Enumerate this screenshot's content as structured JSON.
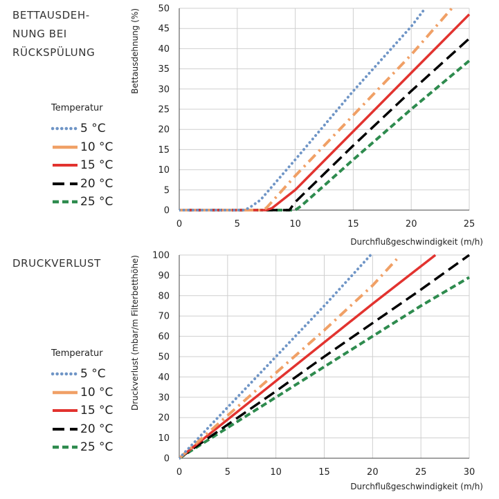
{
  "sections": [
    {
      "title": "BETTAUSDEH-\nNUNG BEI\nRÜCKSPÜLUNG",
      "legend_title": "Temperatur"
    },
    {
      "title": "DRUCKVERLUST",
      "legend_title": "Temperatur"
    }
  ],
  "series_styles": [
    {
      "name": "5 °C",
      "color": "#6f95c6",
      "dash": "dotted"
    },
    {
      "name": "10 °C",
      "color": "#f0a066",
      "dash": "dashdot"
    },
    {
      "name": "15 °C",
      "color": "#e2332f",
      "dash": "solid"
    },
    {
      "name": "20 °C",
      "color": "#000000",
      "dash": "dashed"
    },
    {
      "name": "25 °C",
      "color": "#2e8b4e",
      "dash": "shortdash"
    }
  ],
  "chart_data": [
    {
      "type": "line",
      "title": "BETTAUSDEHNUNG BEI RÜCKSPÜLUNG",
      "xlabel": "Durchflußgeschwindigkeit (m/h)",
      "ylabel": "Bettausdehnung (%)",
      "xlim": [
        0,
        25
      ],
      "ylim": [
        0,
        50
      ],
      "xticks": [
        0,
        5,
        10,
        15,
        20,
        25
      ],
      "yticks": [
        0,
        5,
        10,
        15,
        20,
        25,
        30,
        35,
        40,
        45,
        50
      ],
      "grid": true,
      "legend_title": "Temperatur",
      "legend_position": "left",
      "series": [
        {
          "name": "5 °C",
          "x": [
            0,
            5.5,
            6,
            7,
            10,
            15,
            20,
            21.2
          ],
          "y": [
            0,
            0,
            0.5,
            2.5,
            12.5,
            29.5,
            45.5,
            50
          ]
        },
        {
          "name": "10 °C",
          "x": [
            0,
            7,
            7.5,
            10,
            15,
            20,
            23.5
          ],
          "y": [
            0,
            0,
            0.5,
            8.5,
            23.5,
            38.5,
            50
          ]
        },
        {
          "name": "15 °C",
          "x": [
            0,
            7.5,
            8,
            10,
            15,
            20,
            25
          ],
          "y": [
            0,
            0,
            0.5,
            5,
            19.5,
            34,
            48.5
          ]
        },
        {
          "name": "20 °C",
          "x": [
            0,
            9.5,
            10,
            15,
            20,
            25
          ],
          "y": [
            0,
            0,
            2,
            16,
            29.5,
            42.5
          ]
        },
        {
          "name": "25 °C",
          "x": [
            0,
            10,
            10.5,
            15,
            20,
            25
          ],
          "y": [
            0,
            0,
            1,
            12.5,
            25,
            37
          ]
        }
      ]
    },
    {
      "type": "line",
      "title": "DRUCKVERLUST",
      "xlabel": "Durchflußgeschwindigkeit (m/h)",
      "ylabel": "Druckverlust (mbar/m Filterbetthöhe)",
      "xlim": [
        0,
        30
      ],
      "ylim": [
        0,
        100
      ],
      "xticks": [
        0,
        5,
        10,
        15,
        20,
        25,
        30
      ],
      "yticks": [
        0,
        10,
        20,
        30,
        40,
        50,
        60,
        70,
        80,
        90,
        100
      ],
      "grid": true,
      "legend_title": "Temperatur",
      "legend_position": "left",
      "series": [
        {
          "name": "5 °C",
          "x": [
            0,
            5,
            10,
            15,
            19.8
          ],
          "y": [
            0,
            25,
            50,
            75,
            100
          ]
        },
        {
          "name": "10 °C",
          "x": [
            0,
            5,
            10,
            15,
            20,
            22.5
          ],
          "y": [
            0,
            21,
            42,
            63,
            85,
            98
          ]
        },
        {
          "name": "15 °C",
          "x": [
            0,
            5,
            10,
            15,
            20,
            26.5
          ],
          "y": [
            0,
            19,
            38,
            57,
            76,
            100
          ]
        },
        {
          "name": "20 °C",
          "x": [
            0,
            5,
            10,
            15,
            20,
            25,
            30
          ],
          "y": [
            0,
            16.5,
            33,
            50,
            66.5,
            83,
            100
          ]
        },
        {
          "name": "25 °C",
          "x": [
            0,
            5,
            10,
            15,
            20,
            25,
            30
          ],
          "y": [
            0,
            15,
            30,
            45,
            60,
            75,
            89
          ]
        }
      ]
    }
  ]
}
